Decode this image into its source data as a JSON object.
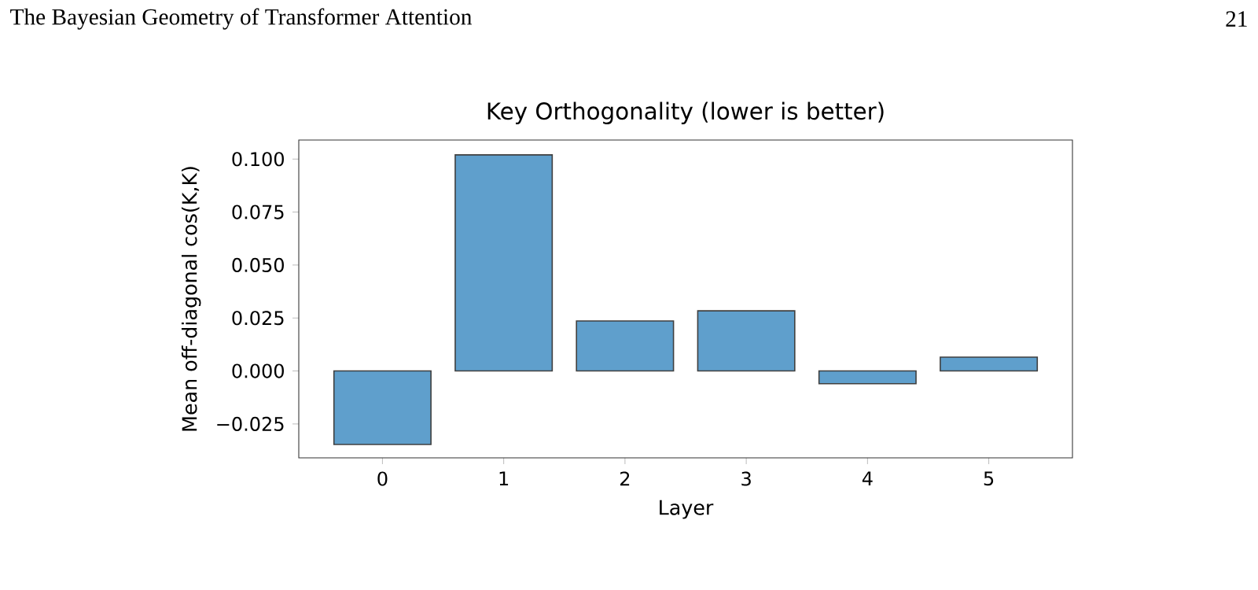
{
  "chart_data": {
    "type": "bar",
    "title": "Key Orthogonality (lower is better)",
    "xlabel": "Layer",
    "ylabel": "Mean off-diagonal cos(K,K)",
    "categories": [
      "0",
      "1",
      "2",
      "3",
      "4",
      "5"
    ],
    "values": [
      -0.0347,
      0.102,
      0.0236,
      0.0284,
      -0.006,
      0.0065
    ],
    "color": "#5f9fcc",
    "ylim": [
      -0.041,
      0.109
    ],
    "yticks": [
      {
        "value": -0.025,
        "label": "−0.025"
      },
      {
        "value": 0,
        "label": "0.000"
      },
      {
        "value": 0.025,
        "label": "0.025"
      },
      {
        "value": 0.05,
        "label": "0.050"
      },
      {
        "value": 0.075,
        "label": "0.075"
      },
      {
        "value": 0.1,
        "label": "0.100"
      }
    ],
    "annotations": [
      "The Bayesian Geometry of Transformer Attention",
      "21"
    ]
  }
}
